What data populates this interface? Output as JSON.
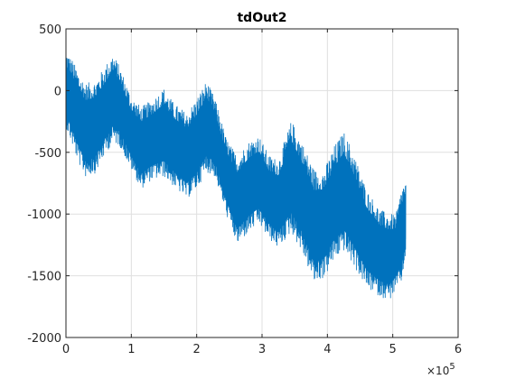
{
  "chart_data": {
    "type": "line",
    "title": "tdOut2",
    "xlabel": "",
    "ylabel": "",
    "xlim": [
      0,
      600000
    ],
    "ylim": [
      -2000,
      500
    ],
    "x_ticks": [
      0,
      100000,
      200000,
      300000,
      400000,
      500000,
      600000
    ],
    "x_tick_labels": [
      "0",
      "1",
      "2",
      "3",
      "4",
      "5",
      "6"
    ],
    "x_exponent_label": "×10",
    "x_exponent": "5",
    "y_ticks": [
      500,
      0,
      -500,
      -1000,
      -1500,
      -2000
    ],
    "y_tick_labels": [
      "500",
      "0",
      "-500",
      "-1000",
      "-1500",
      "-2000"
    ],
    "grid": true,
    "series": [
      {
        "name": "tdOut2",
        "color": "#0072BD",
        "x_range": [
          0,
          520000
        ],
        "envelope": [
          {
            "x": 0,
            "upper": 320,
            "lower": -300
          },
          {
            "x": 10000,
            "upper": 250,
            "lower": -450
          },
          {
            "x": 20000,
            "upper": 140,
            "lower": -600
          },
          {
            "x": 30000,
            "upper": 60,
            "lower": -700
          },
          {
            "x": 45000,
            "upper": 80,
            "lower": -670
          },
          {
            "x": 60000,
            "upper": 200,
            "lower": -520
          },
          {
            "x": 72000,
            "upper": 300,
            "lower": -420
          },
          {
            "x": 82000,
            "upper": 200,
            "lower": -450
          },
          {
            "x": 100000,
            "upper": -50,
            "lower": -640
          },
          {
            "x": 115000,
            "upper": -130,
            "lower": -800
          },
          {
            "x": 130000,
            "upper": -80,
            "lower": -730
          },
          {
            "x": 150000,
            "upper": 20,
            "lower": -700
          },
          {
            "x": 165000,
            "upper": -100,
            "lower": -780
          },
          {
            "x": 185000,
            "upper": -180,
            "lower": -880
          },
          {
            "x": 200000,
            "upper": -60,
            "lower": -800
          },
          {
            "x": 215000,
            "upper": 80,
            "lower": -660
          },
          {
            "x": 228000,
            "upper": -60,
            "lower": -700
          },
          {
            "x": 245000,
            "upper": -380,
            "lower": -1000
          },
          {
            "x": 262000,
            "upper": -530,
            "lower": -1250
          },
          {
            "x": 280000,
            "upper": -410,
            "lower": -1150
          },
          {
            "x": 295000,
            "upper": -360,
            "lower": -1080
          },
          {
            "x": 310000,
            "upper": -520,
            "lower": -1200
          },
          {
            "x": 325000,
            "upper": -560,
            "lower": -1280
          },
          {
            "x": 345000,
            "upper": -240,
            "lower": -1150
          },
          {
            "x": 360000,
            "upper": -400,
            "lower": -1300
          },
          {
            "x": 380000,
            "upper": -640,
            "lower": -1560
          },
          {
            "x": 395000,
            "upper": -640,
            "lower": -1520
          },
          {
            "x": 410000,
            "upper": -450,
            "lower": -1380
          },
          {
            "x": 425000,
            "upper": -330,
            "lower": -1300
          },
          {
            "x": 440000,
            "upper": -500,
            "lower": -1420
          },
          {
            "x": 460000,
            "upper": -800,
            "lower": -1600
          },
          {
            "x": 480000,
            "upper": -960,
            "lower": -1670
          },
          {
            "x": 495000,
            "upper": -1000,
            "lower": -1700
          },
          {
            "x": 505000,
            "upper": -1000,
            "lower": -1620
          },
          {
            "x": 515000,
            "upper": -760,
            "lower": -1540
          },
          {
            "x": 520000,
            "upper": -740,
            "lower": -1300
          }
        ]
      }
    ]
  }
}
